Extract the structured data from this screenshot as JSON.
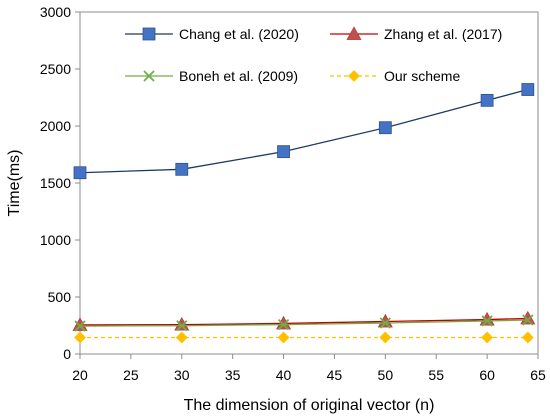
{
  "chart_data": {
    "type": "line",
    "title": "",
    "xlabel": "The dimension of original vector (n)",
    "ylabel": "Time(ms)",
    "xlim": [
      20,
      65
    ],
    "ylim": [
      0,
      3000
    ],
    "xticks": [
      "20",
      "25",
      "30",
      "35",
      "40",
      "45",
      "50",
      "55",
      "60",
      "65"
    ],
    "yticks": [
      "0",
      "500",
      "1000",
      "1500",
      "2000",
      "2500",
      "3000"
    ],
    "grid": false,
    "legend_position": "top",
    "x": [
      20,
      30,
      40,
      50,
      60,
      64
    ],
    "series": [
      {
        "name": "Chang et al. (2020)",
        "values": [
          1590,
          1620,
          1775,
          1985,
          2225,
          2320
        ],
        "line_color": "#1f3864",
        "marker_color": "#4472c4",
        "marker": "square",
        "dash": false
      },
      {
        "name": "Zhang et al. (2017)",
        "values": [
          255,
          258,
          268,
          285,
          302,
          312
        ],
        "line_color": "#c00000",
        "marker_color": "#c0504d",
        "marker": "triangle",
        "dash": false
      },
      {
        "name": "Boneh et al. (2009)",
        "values": [
          245,
          248,
          258,
          272,
          290,
          298
        ],
        "line_color": "#70ad47",
        "marker_color": "#70ad47",
        "marker": "x",
        "dash": false
      },
      {
        "name": "Our scheme",
        "values": [
          145,
          145,
          145,
          145,
          145,
          145
        ],
        "line_color": "#ffc000",
        "marker_color": "#ffc000",
        "marker": "diamond",
        "dash": true
      }
    ]
  }
}
